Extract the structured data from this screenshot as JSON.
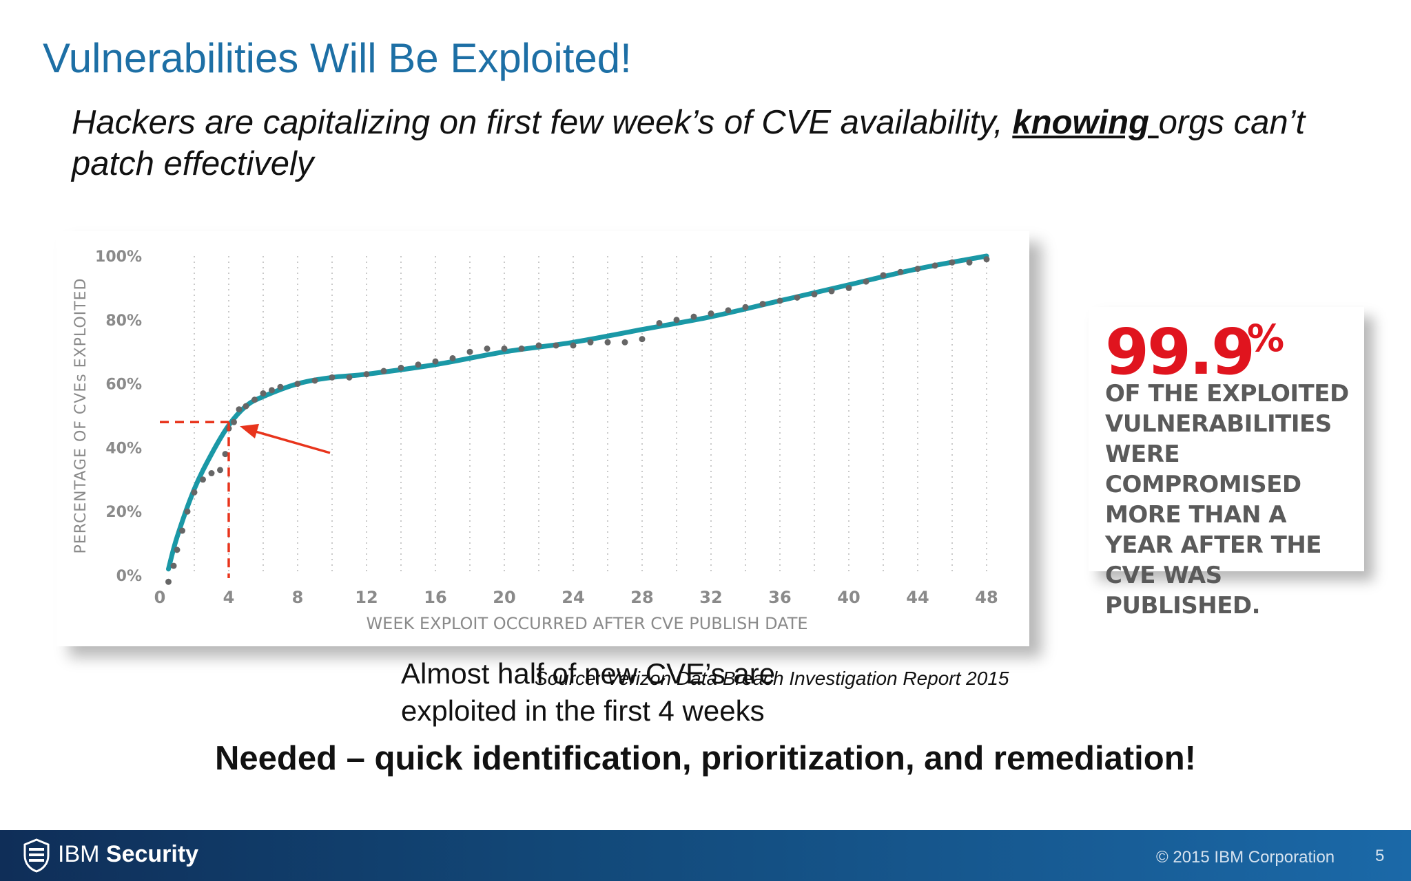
{
  "slide": {
    "title": "Vulnerabilities Will Be Exploited!",
    "subtitle_pre": "Hackers are capitalizing on first few week’s of CVE availability, ",
    "subtitle_emph": "knowing ",
    "subtitle_post": "orgs can’t patch effectively",
    "source": "Source: Verizon Data Breach Investigation Report 2015",
    "call_to_action": "Needed – quick identification, prioritization, and remediation!"
  },
  "annotation": {
    "text": "Almost half of new CVE’s are exploited in the first 4 weeks",
    "arrow_color": "#e8341c",
    "marker_x": 4,
    "marker_y": 48
  },
  "stat": {
    "value": "99.9",
    "unit": "%",
    "text": "OF THE EXPLOITED VULNERABILITIES WERE COMPROMISED MORE THAN A YEAR AFTER THE CVE WAS PUBLISHED.",
    "color": "#e0141e"
  },
  "footer": {
    "brand_light": "IBM ",
    "brand_bold": "Security",
    "copyright": "© 2015 IBM Corporation",
    "page": "5"
  },
  "chart_data": {
    "type": "scatter",
    "title": "",
    "xlabel": "WEEK EXPLOIT OCCURRED AFTER CVE PUBLISH DATE",
    "ylabel": "PERCENTAGE OF CVEs EXPLOITED",
    "xlim": [
      0,
      48
    ],
    "ylim": [
      0,
      100
    ],
    "x_ticks": [
      "0",
      "4",
      "8",
      "12",
      "16",
      "20",
      "24",
      "28",
      "32",
      "36",
      "40",
      "44",
      "48"
    ],
    "y_ticks": [
      "0%",
      "20%",
      "40%",
      "60%",
      "80%",
      "100%"
    ],
    "grid": "vertical-dotted",
    "colors": {
      "fit": "#1a98a6",
      "points": "#666666",
      "axis_text": "#8a8a8a"
    },
    "series": [
      {
        "type": "scatter",
        "x": [
          0.5,
          0.8,
          1,
          1.3,
          1.6,
          2,
          2.5,
          3,
          3.5,
          3.8,
          4,
          4.3,
          4.6,
          5,
          5.5,
          6,
          6.5,
          7,
          8,
          9,
          10,
          11,
          12,
          13,
          14,
          15,
          16,
          17,
          18,
          19,
          20,
          21,
          22,
          23,
          24,
          25,
          26,
          27,
          28,
          29,
          30,
          31,
          32,
          33,
          34,
          35,
          36,
          37,
          38,
          39,
          40,
          41,
          42,
          43,
          44,
          45,
          46,
          47,
          48
        ],
        "y": [
          -2,
          3,
          8,
          14,
          20,
          26,
          30,
          32,
          33,
          38,
          46,
          48,
          52,
          53,
          55,
          57,
          58,
          59,
          60,
          61,
          62,
          62,
          63,
          64,
          65,
          66,
          67,
          68,
          70,
          71,
          71,
          71,
          72,
          72,
          72,
          73,
          73,
          73,
          74,
          79,
          80,
          81,
          82,
          83,
          84,
          85,
          86,
          87,
          88,
          89,
          90,
          92,
          94,
          95,
          96,
          97,
          98,
          98,
          99
        ]
      },
      {
        "type": "line",
        "x": [
          0.5,
          1,
          2,
          3,
          4,
          5,
          6,
          8,
          10,
          12,
          16,
          20,
          24,
          28,
          32,
          36,
          40,
          44,
          48
        ],
        "y": [
          2,
          12,
          27,
          38,
          47,
          53,
          56,
          60,
          62,
          63,
          66,
          70,
          73,
          77,
          81,
          86,
          91,
          96,
          100
        ]
      }
    ]
  }
}
